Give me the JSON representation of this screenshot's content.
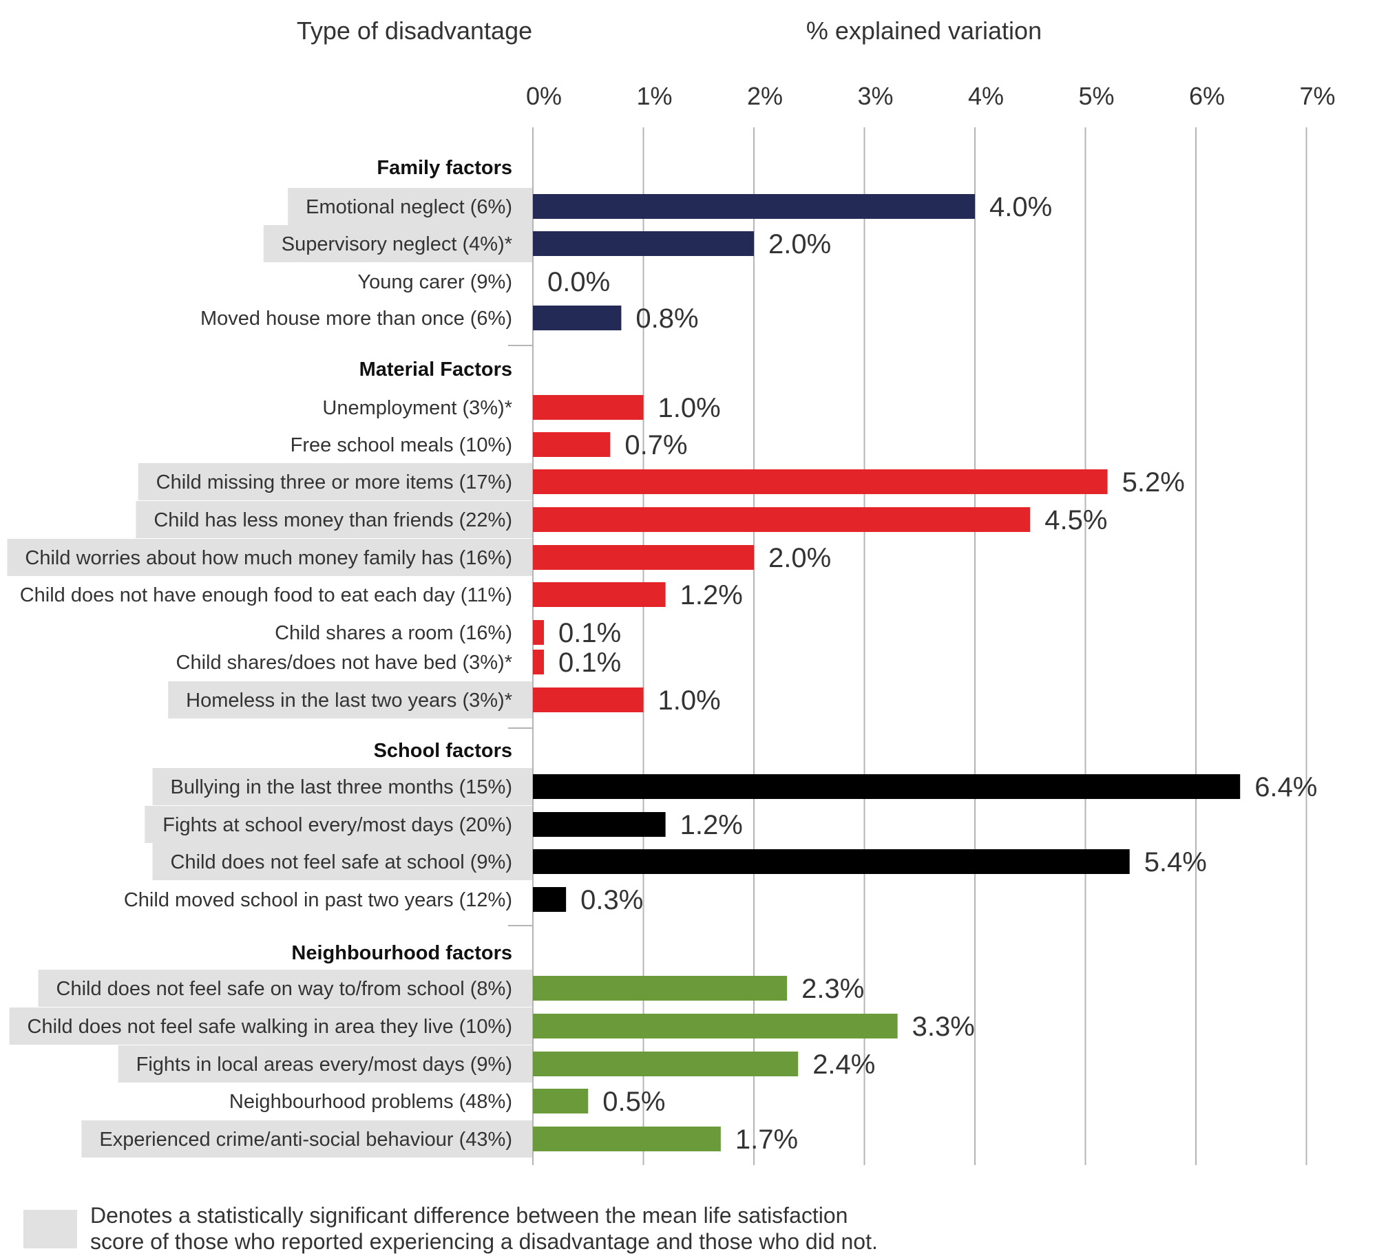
{
  "chart_data": {
    "type": "bar",
    "orientation": "horizontal",
    "column_header_left": "Type of disadvantage",
    "column_header_right": "% explained variation",
    "xlim": [
      0,
      7
    ],
    "x_ticks": [
      "0%",
      "1%",
      "2%",
      "3%",
      "4%",
      "5%",
      "6%",
      "7%"
    ],
    "grid": true,
    "groups": [
      {
        "title": "Family factors",
        "color": "#232a55",
        "rows": [
          {
            "label": "Emotional neglect (6%)",
            "value": 4.0,
            "value_label": "4.0%",
            "significant": true
          },
          {
            "label": "Supervisory neglect (4%)*",
            "value": 2.0,
            "value_label": "2.0%",
            "significant": true
          },
          {
            "label": "Young carer (9%)",
            "value": 0.0,
            "value_label": "0.0%",
            "significant": false
          },
          {
            "label": "Moved house more than once (6%)",
            "value": 0.8,
            "value_label": "0.8%",
            "significant": false
          }
        ]
      },
      {
        "title": "Material Factors",
        "color": "#e3252a",
        "rows": [
          {
            "label": "Unemployment (3%)*",
            "value": 1.0,
            "value_label": "1.0%",
            "significant": false
          },
          {
            "label": "Free school meals (10%)",
            "value": 0.7,
            "value_label": "0.7%",
            "significant": false
          },
          {
            "label": "Child missing three or more items (17%)",
            "value": 5.2,
            "value_label": "5.2%",
            "significant": true
          },
          {
            "label": "Child has less money than friends (22%)",
            "value": 4.5,
            "value_label": "4.5%",
            "significant": true
          },
          {
            "label": "Child worries about how much money family has (16%)",
            "value": 2.0,
            "value_label": "2.0%",
            "significant": true
          },
          {
            "label": "Child does not have enough food to eat each day (11%)",
            "value": 1.2,
            "value_label": "1.2%",
            "significant": false
          },
          {
            "label": "Child shares a room (16%)",
            "value": 0.1,
            "value_label": "0.1%",
            "significant": false
          },
          {
            "label": "Child shares/does not have bed (3%)*",
            "value": 0.1,
            "value_label": "0.1%",
            "significant": false
          },
          {
            "label": "Homeless in the last two years (3%)*",
            "value": 1.0,
            "value_label": "1.0%",
            "significant": true
          }
        ]
      },
      {
        "title": "School factors",
        "color": "#000000",
        "rows": [
          {
            "label": "Bullying in the last three months (15%)",
            "value": 6.4,
            "value_label": "6.4%",
            "significant": true
          },
          {
            "label": "Fights at school every/most days (20%)",
            "value": 1.2,
            "value_label": "1.2%",
            "significant": true
          },
          {
            "label": "Child does not feel safe at school (9%)",
            "value": 5.4,
            "value_label": "5.4%",
            "significant": true
          },
          {
            "label": "Child moved school in past two years (12%)",
            "value": 0.3,
            "value_label": "0.3%",
            "significant": false
          }
        ]
      },
      {
        "title": "Neighbourhood factors",
        "color": "#6a9a3a",
        "rows": [
          {
            "label": "Child does not feel safe on way to/from school (8%)",
            "value": 2.3,
            "value_label": "2.3%",
            "significant": true
          },
          {
            "label": "Child does not feel safe walking in area they live (10%)",
            "value": 3.3,
            "value_label": "3.3%",
            "significant": true
          },
          {
            "label": "Fights in local areas every/most days (9%)",
            "value": 2.4,
            "value_label": "2.4%",
            "significant": true
          },
          {
            "label": "Neighbourhood problems (48%)",
            "value": 0.5,
            "value_label": "0.5%",
            "significant": false
          },
          {
            "label": "Experienced crime/anti-social behaviour (43%)",
            "value": 1.7,
            "value_label": "1.7%",
            "significant": true
          }
        ]
      }
    ],
    "legend": {
      "swatch_color": "#e1e1e1",
      "text_lines": [
        "Denotes a statistically significant difference between the mean life satisfaction",
        "score of those who reported experiencing a disadvantage and those who did not."
      ]
    }
  }
}
